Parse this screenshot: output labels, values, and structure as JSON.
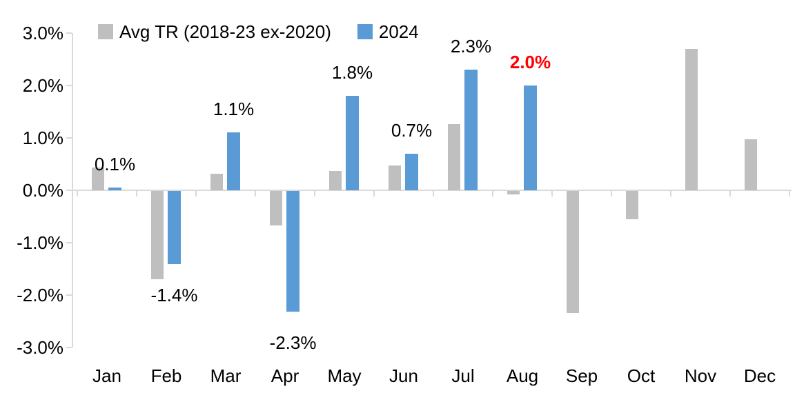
{
  "chart_data": {
    "type": "bar",
    "title": "",
    "categories": [
      "Jan",
      "Feb",
      "Mar",
      "Apr",
      "May",
      "Jun",
      "Jul",
      "Aug",
      "Sep",
      "Oct",
      "Nov",
      "Dec"
    ],
    "series": [
      {
        "name": "Avg TR (2018-23 ex-2020)",
        "color": "#BFBFBF",
        "values": [
          0.43,
          -1.69,
          0.31,
          -0.66,
          0.37,
          0.48,
          1.26,
          -0.07,
          -2.33,
          -0.54,
          2.7,
          0.97
        ]
      },
      {
        "name": "2024",
        "color": "#5B9BD5",
        "values": [
          0.05,
          -1.4,
          1.1,
          -2.3,
          1.8,
          0.7,
          2.3,
          2.0,
          null,
          null,
          null,
          null
        ]
      }
    ],
    "data_labels": {
      "series": "2024",
      "labels": [
        "0.1%",
        "-1.4%",
        "1.1%",
        "-2.3%",
        "1.8%",
        "0.7%",
        "2.3%",
        "2.0%",
        null,
        null,
        null,
        null
      ],
      "default_color": "#000000",
      "highlight_index": 7,
      "highlight_color": "#FF0000"
    },
    "y_axis": {
      "tick_labels": [
        "3.0%",
        "2.0%",
        "1.0%",
        "0.0%",
        "-1.0%",
        "-2.0%",
        "-3.0%"
      ],
      "max": 3.0,
      "min": -3.0,
      "unit": "%"
    },
    "grid": false,
    "legend_position": "top",
    "axis_color": "#D9D9D9",
    "text_color": "#000000",
    "background_color": "#FFFFFF"
  }
}
